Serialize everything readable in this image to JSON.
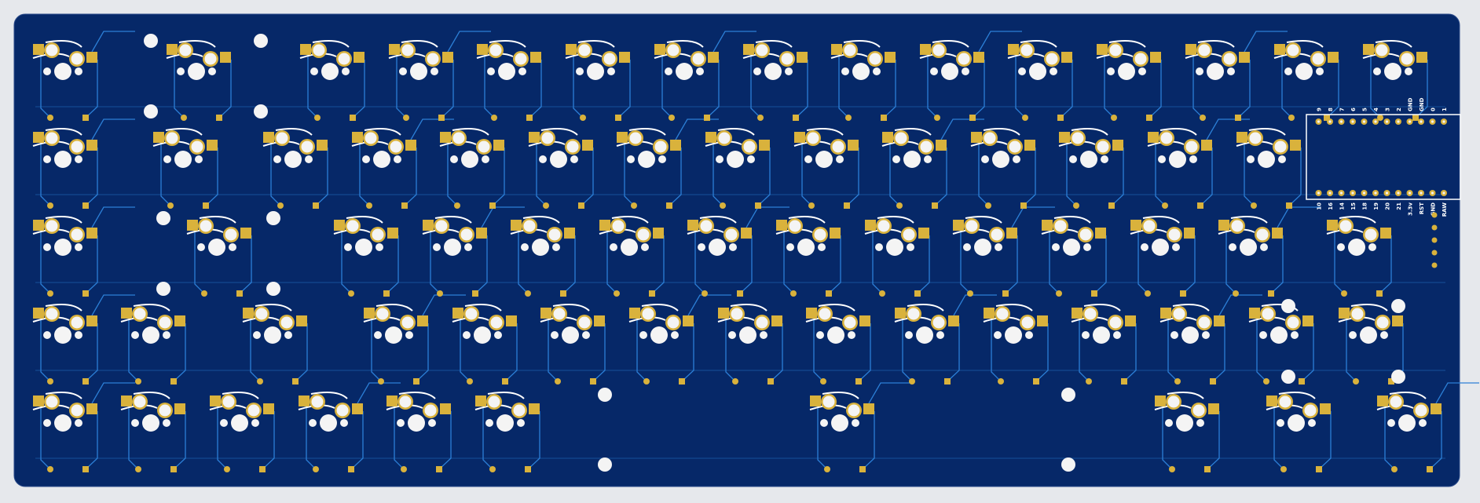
{
  "board": {
    "colors": {
      "background": "#e6e8ec",
      "substrate": "#062868",
      "outline": "#ffffff",
      "trace": "#2c7fd6",
      "copper": "#d9b23c",
      "drill": "#f4f4f4",
      "silk": "#ffffff"
    },
    "switch_rows": [
      13,
      14,
      12,
      12,
      7
    ],
    "special_switch_rows": [
      0,
      1,
      2,
      3
    ],
    "microcontroller": {
      "top_pin_labels": [
        "1",
        "0",
        "GND",
        "GND",
        "2",
        "3",
        "4",
        "5",
        "6",
        "7",
        "8",
        "9"
      ],
      "bottom_pin_labels": [
        "RAW",
        "GND",
        "RST",
        "3.3v",
        "21",
        "20",
        "19",
        "18",
        "15",
        "14",
        "16",
        "10"
      ]
    }
  }
}
